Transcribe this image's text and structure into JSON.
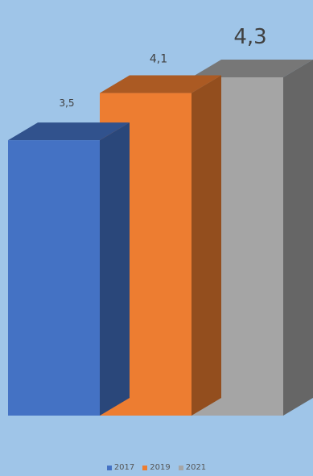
{
  "chart_data": {
    "type": "bar",
    "style": "3d-column",
    "categories": [
      "2017",
      "2019",
      "2021"
    ],
    "values": [
      3.5,
      4.1,
      4.3
    ],
    "data_labels": [
      "3,5",
      "4,1",
      "4,3"
    ],
    "colors": [
      "#4472c4",
      "#ed7d31",
      "#a5a5a5"
    ],
    "ylim": [
      0,
      4.3
    ],
    "grid": false,
    "legend_position": "bottom"
  },
  "legend": {
    "items": [
      {
        "label": "2017",
        "color": "#4472c4"
      },
      {
        "label": "2019",
        "color": "#ed7d31"
      },
      {
        "label": "2021",
        "color": "#a5a5a5"
      }
    ]
  },
  "background_color": "#9fc5e8"
}
